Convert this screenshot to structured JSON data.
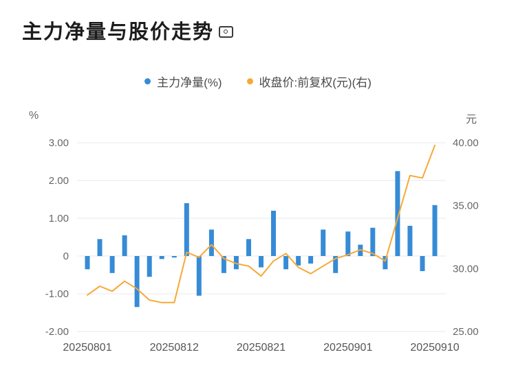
{
  "page": {
    "title": "主力净量与股价走势"
  },
  "legend": [
    {
      "label": "主力净量(%)",
      "color": "#368BD6"
    },
    {
      "label": "收盘价:前复权(元)(右)",
      "color": "#F7A835"
    }
  ],
  "axes": {
    "left_unit": "%",
    "right_unit": "元",
    "left_ticks": [
      "3.00",
      "2.00",
      "1.00",
      "0",
      "-1.00",
      "-2.00"
    ],
    "left_tick_values": [
      3,
      2,
      1,
      0,
      -1,
      -2
    ],
    "right_ticks": [
      "40.00",
      "35.00",
      "30.00",
      "25.00"
    ],
    "right_tick_values": [
      40,
      35,
      30,
      25
    ],
    "x_ticks": [
      "20250801",
      "20250812",
      "20250821",
      "20250901",
      "20250910"
    ],
    "x_tick_indices": [
      0,
      7,
      14,
      21,
      28
    ]
  },
  "chart_data": {
    "type": "bar+line",
    "title": "主力净量与股价走势",
    "grid": true,
    "legend_position": "top-center",
    "left_ylim": [
      -2,
      3
    ],
    "right_ylim": [
      25,
      40
    ],
    "x": [
      "20250801",
      "20250804",
      "20250805",
      "20250806",
      "20250807",
      "20250808",
      "20250811",
      "20250812",
      "20250813",
      "20250814",
      "20250815",
      "20250818",
      "20250819",
      "20250820",
      "20250821",
      "20250822",
      "20250825",
      "20250826",
      "20250827",
      "20250828",
      "20250829",
      "20250901",
      "20250902",
      "20250903",
      "20250904",
      "20250905",
      "20250908",
      "20250909",
      "20250910"
    ],
    "series": [
      {
        "name": "主力净量(%)",
        "type": "bar",
        "axis": "left",
        "color": "#368BD6",
        "values": [
          -0.35,
          0.45,
          -0.45,
          0.55,
          -1.35,
          -0.55,
          -0.08,
          -0.04,
          1.4,
          -1.05,
          0.7,
          -0.45,
          -0.35,
          0.45,
          -0.3,
          1.2,
          -0.35,
          -0.25,
          -0.2,
          0.7,
          -0.45,
          0.65,
          0.3,
          0.75,
          -0.35,
          2.25,
          0.8,
          -0.4,
          1.35
        ]
      },
      {
        "name": "收盘价:前复权(元)(右)",
        "type": "line",
        "axis": "right",
        "color": "#F7A835",
        "values": [
          27.9,
          28.6,
          28.2,
          29.0,
          28.4,
          27.5,
          27.3,
          27.3,
          31.3,
          30.9,
          31.9,
          30.8,
          30.4,
          30.2,
          29.4,
          30.6,
          31.2,
          30.1,
          29.6,
          30.2,
          30.8,
          31.1,
          31.5,
          31.2,
          30.6,
          34.0,
          37.4,
          37.2,
          39.8
        ]
      }
    ]
  }
}
